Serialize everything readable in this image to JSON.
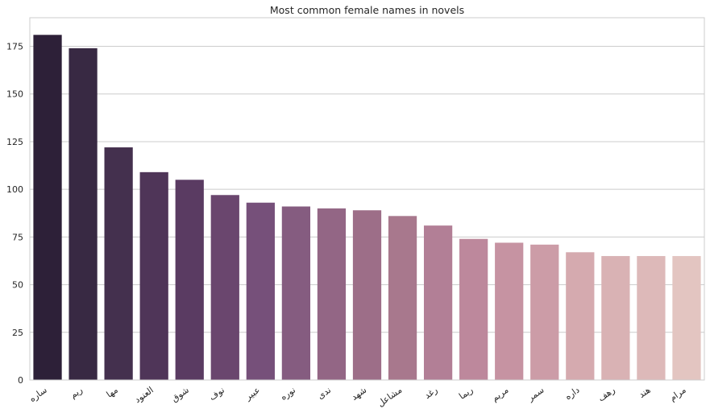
{
  "chart_data": {
    "type": "bar",
    "title": "Most common female names in novels",
    "xlabel": "",
    "ylabel": "",
    "ylim": [
      0,
      190
    ],
    "yticks": [
      0,
      25,
      50,
      75,
      100,
      125,
      150,
      175
    ],
    "grid": "y",
    "categories": [
      "ساره",
      "ريم",
      "مها",
      "العنود",
      "شوق",
      "نوف",
      "عبير",
      "نوره",
      "ندى",
      "شهد",
      "مشاعل",
      "رغد",
      "ريما",
      "مريم",
      "سمر",
      "داره",
      "رهف",
      "هند",
      "مرام"
    ],
    "values": [
      181,
      174,
      122,
      109,
      105,
      97,
      93,
      91,
      90,
      89,
      86,
      81,
      74,
      72,
      71,
      67,
      65,
      65,
      65
    ],
    "colors": [
      "#2d2038",
      "#382943",
      "#44304e",
      "#4f3558",
      "#5a3b62",
      "#6a466e",
      "#76507a",
      "#855c80",
      "#936685",
      "#9d6e88",
      "#a8788d",
      "#b27f96",
      "#bd889c",
      "#c693a2",
      "#cc9ca7",
      "#d5aaaf",
      "#d9b2b4",
      "#ddb9b9",
      "#e3c5c1"
    ]
  }
}
